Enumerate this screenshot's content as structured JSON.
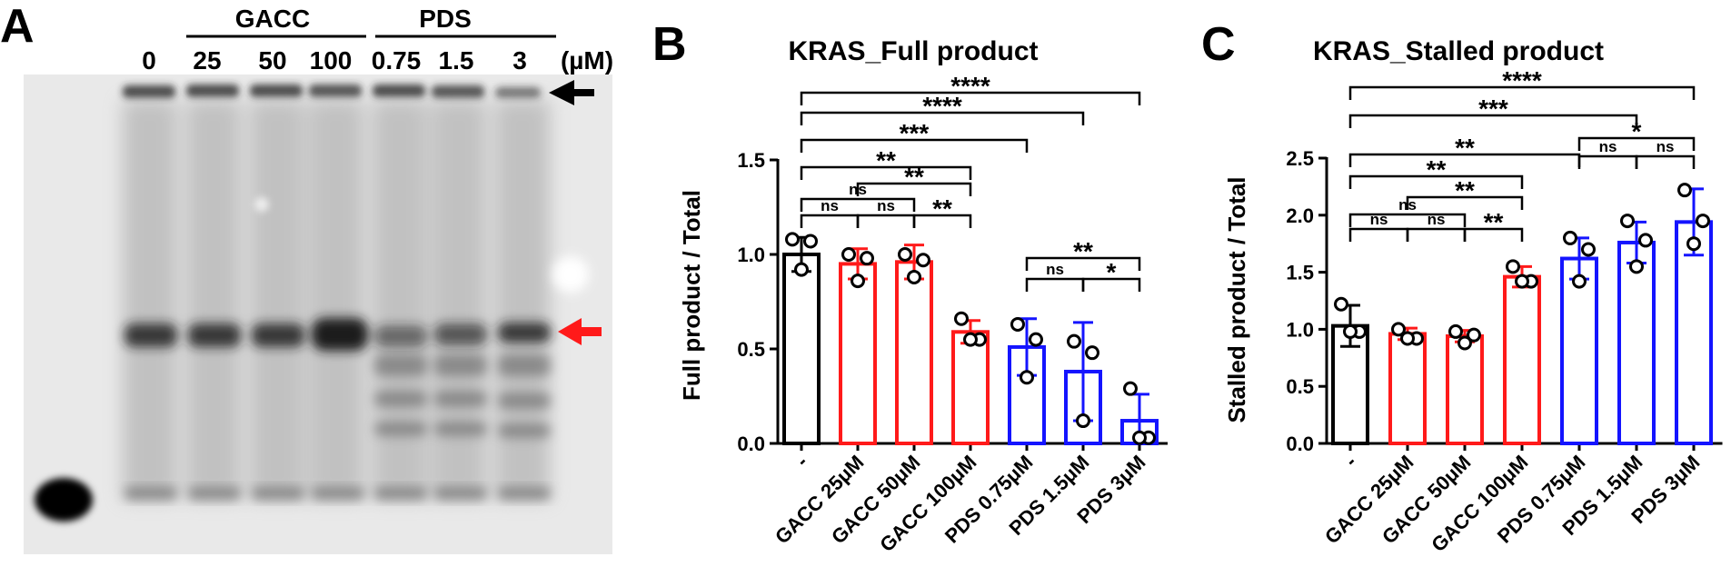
{
  "panel_a": {
    "panel_label": "A",
    "group_labels": [
      "GACC",
      "PDS"
    ],
    "lane_labels": [
      "0",
      "25",
      "50",
      "100",
      "0.75",
      "1.5",
      "3"
    ],
    "unit_label": "(µM)",
    "arrow_colors": {
      "top": "#000000",
      "middle": "#ff1a1a"
    },
    "gel_background": "#e9e9e9"
  },
  "chart_data": [
    {
      "panel_label": "B",
      "type": "bar",
      "title": "KRAS_Full product",
      "xlabel": "",
      "ylabel": "Full product / Total",
      "ylim": [
        0,
        1.5
      ],
      "yticks": [
        "0.0",
        "0.5",
        "1.0",
        "1.5"
      ],
      "categories": [
        "-",
        "GACC 25μM",
        "GACC 50μM",
        "GACC 100μM",
        "PDS 0.75μM",
        "PDS 1.5μM",
        "PDS 3μM"
      ],
      "values": [
        1.0,
        0.95,
        0.96,
        0.59,
        0.51,
        0.38,
        0.12
      ],
      "errors": [
        0.09,
        0.08,
        0.09,
        0.06,
        0.15,
        0.26,
        0.14
      ],
      "points": [
        [
          1.08,
          1.07,
          0.92
        ],
        [
          1.0,
          0.98,
          0.86
        ],
        [
          1.0,
          0.97,
          0.88
        ],
        [
          0.66,
          0.55,
          0.55
        ],
        [
          0.63,
          0.55,
          0.35
        ],
        [
          0.54,
          0.48,
          0.12
        ],
        [
          0.29,
          0.03,
          0.03
        ]
      ],
      "bar_colors": [
        "#000000",
        "#ff1a1a",
        "#ff1a1a",
        "#ff1a1a",
        "#1414ff",
        "#1414ff",
        "#1414ff"
      ],
      "comparisons": [
        {
          "from": 0,
          "to": 1,
          "label": "ns"
        },
        {
          "from": 1,
          "to": 2,
          "label": "ns"
        },
        {
          "from": 2,
          "to": 3,
          "label": "**"
        },
        {
          "from": 0,
          "to": 2,
          "label": "ns"
        },
        {
          "from": 1,
          "to": 3,
          "label": "**"
        },
        {
          "from": 0,
          "to": 3,
          "label": "**"
        },
        {
          "from": 0,
          "to": 4,
          "label": "***"
        },
        {
          "from": 0,
          "to": 5,
          "label": "****"
        },
        {
          "from": 0,
          "to": 6,
          "label": "****"
        },
        {
          "from": 4,
          "to": 5,
          "label": "ns"
        },
        {
          "from": 5,
          "to": 6,
          "label": "*"
        },
        {
          "from": 4,
          "to": 6,
          "label": "**"
        }
      ]
    },
    {
      "panel_label": "C",
      "type": "bar",
      "title": "KRAS_Stalled product",
      "xlabel": "",
      "ylabel": "Stalled product / Total",
      "ylim": [
        0,
        2.5
      ],
      "yticks": [
        "0.0",
        "0.5",
        "1.0",
        "1.5",
        "2.0",
        "2.5"
      ],
      "categories": [
        "-",
        "GACC 25μM",
        "GACC 50μM",
        "GACC 100μM",
        "PDS 0.75μM",
        "PDS 1.5μM",
        "PDS 3μM"
      ],
      "values": [
        1.03,
        0.96,
        0.94,
        1.46,
        1.62,
        1.76,
        1.94
      ],
      "errors": [
        0.18,
        0.05,
        0.05,
        0.09,
        0.18,
        0.18,
        0.29
      ],
      "points": [
        [
          1.22,
          0.98,
          0.98
        ],
        [
          1.0,
          0.92,
          0.92
        ],
        [
          0.98,
          0.95,
          0.88
        ],
        [
          1.55,
          1.42,
          1.42
        ],
        [
          1.8,
          1.7,
          1.42
        ],
        [
          1.95,
          1.78,
          1.55
        ],
        [
          2.22,
          1.95,
          1.75
        ]
      ],
      "bar_colors": [
        "#000000",
        "#ff1a1a",
        "#ff1a1a",
        "#ff1a1a",
        "#1414ff",
        "#1414ff",
        "#1414ff"
      ],
      "comparisons": [
        {
          "from": 0,
          "to": 1,
          "label": "ns"
        },
        {
          "from": 1,
          "to": 2,
          "label": "ns"
        },
        {
          "from": 2,
          "to": 3,
          "label": "**"
        },
        {
          "from": 0,
          "to": 2,
          "label": "ns"
        },
        {
          "from": 1,
          "to": 3,
          "label": "**"
        },
        {
          "from": 0,
          "to": 3,
          "label": "**"
        },
        {
          "from": 0,
          "to": 4,
          "label": "**"
        },
        {
          "from": 4,
          "to": 5,
          "label": "ns"
        },
        {
          "from": 5,
          "to": 6,
          "label": "ns"
        },
        {
          "from": 4,
          "to": 6,
          "label": "*"
        },
        {
          "from": 0,
          "to": 5,
          "label": "***"
        },
        {
          "from": 0,
          "to": 6,
          "label": "****"
        }
      ]
    }
  ]
}
